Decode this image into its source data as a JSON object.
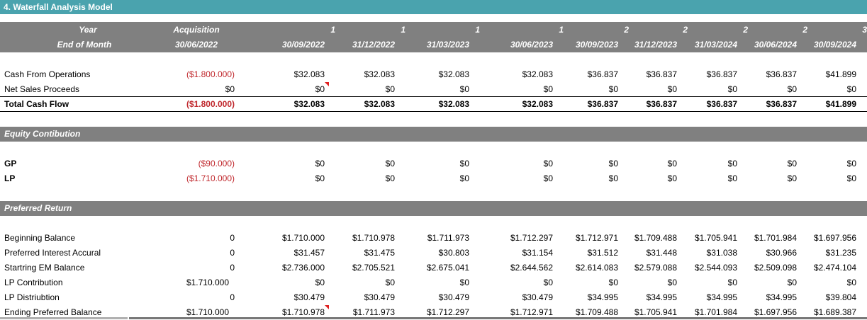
{
  "title": "4. Waterfall Analysis Model",
  "header": {
    "row1_label": "Year",
    "row2_label": "End of Month",
    "years": [
      "Acquisition",
      "1",
      "1",
      "1",
      "1",
      "2",
      "2",
      "2",
      "2",
      "3"
    ],
    "months": [
      "30/06/2022",
      "30/09/2022",
      "31/12/2022",
      "31/03/2023",
      "30/06/2023",
      "30/09/2023",
      "31/12/2023",
      "31/03/2024",
      "30/06/2024",
      "30/09/2024"
    ]
  },
  "cashflow": {
    "rows": [
      {
        "label": "Cash From Operations",
        "values": [
          "($1.800.000)",
          "$32.083",
          "$32.083",
          "$32.083",
          "$32.083",
          "$36.837",
          "$36.837",
          "$36.837",
          "$36.837",
          "$41.899"
        ]
      },
      {
        "label": "Net Sales Proceeds",
        "values": [
          "$0",
          "$0",
          "$0",
          "$0",
          "$0",
          "$0",
          "$0",
          "$0",
          "$0",
          "$0"
        ]
      },
      {
        "label": "Total Cash Flow",
        "values": [
          "($1.800.000)",
          "$32.083",
          "$32.083",
          "$32.083",
          "$32.083",
          "$36.837",
          "$36.837",
          "$36.837",
          "$36.837",
          "$41.899"
        ]
      }
    ]
  },
  "equity": {
    "section_title": "Equity Contibution",
    "rows": [
      {
        "label": "GP",
        "values": [
          "($90.000)",
          "$0",
          "$0",
          "$0",
          "$0",
          "$0",
          "$0",
          "$0",
          "$0",
          "$0"
        ]
      },
      {
        "label": "LP",
        "values": [
          "($1.710.000)",
          "$0",
          "$0",
          "$0",
          "$0",
          "$0",
          "$0",
          "$0",
          "$0",
          "$0"
        ]
      }
    ]
  },
  "preferred": {
    "section_title": "Preferred Return",
    "rows": [
      {
        "label": "Beginning Balance",
        "values": [
          "0",
          "$1.710.000",
          "$1.710.978",
          "$1.711.973",
          "$1.712.297",
          "$1.712.971",
          "$1.709.488",
          "$1.705.941",
          "$1.701.984",
          "$1.697.956"
        ]
      },
      {
        "label": "Preferred Interest Accural",
        "values": [
          "0",
          "$31.457",
          "$31.475",
          "$30.803",
          "$31.154",
          "$31.512",
          "$31.448",
          "$31.038",
          "$30.966",
          "$31.235"
        ]
      },
      {
        "label": "Startring EM Balance",
        "values": [
          "0",
          "$2.736.000",
          "$2.705.521",
          "$2.675.041",
          "$2.644.562",
          "$2.614.083",
          "$2.579.088",
          "$2.544.093",
          "$2.509.098",
          "$2.474.104"
        ]
      },
      {
        "label": "LP Contribution",
        "values": [
          "$1.710.000",
          "$0",
          "$0",
          "$0",
          "$0",
          "$0",
          "$0",
          "$0",
          "$0",
          "$0"
        ]
      },
      {
        "label": "LP Distriubtion",
        "values": [
          "0",
          "$30.479",
          "$30.479",
          "$30.479",
          "$30.479",
          "$34.995",
          "$34.995",
          "$34.995",
          "$34.995",
          "$39.804"
        ]
      },
      {
        "label": "Ending Preferred Balance",
        "values": [
          "$1.710.000",
          "$1.710.978",
          "$1.711.973",
          "$1.712.297",
          "$1.712.971",
          "$1.709.488",
          "$1.705.941",
          "$1.701.984",
          "$1.697.956",
          "$1.689.387"
        ]
      }
    ]
  },
  "colors": {
    "title_bar": "#4aa3ae",
    "band": "#808080",
    "negative": "#c0282d",
    "comment_marker": "#e02020"
  }
}
